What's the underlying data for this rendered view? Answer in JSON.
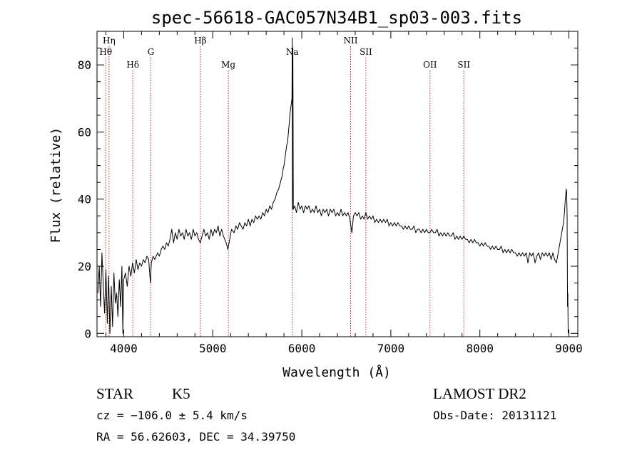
{
  "chart_data": {
    "type": "line",
    "title": "spec-56618-GAC057N34B1_sp03-003.fits",
    "xlabel": "Wavelength (Å)",
    "ylabel": "Flux (relative)",
    "xlim": [
      3700,
      9100
    ],
    "ylim": [
      -1,
      90
    ],
    "x_ticks": [
      4000,
      5000,
      6000,
      7000,
      8000,
      9000
    ],
    "y_ticks": [
      0,
      20,
      40,
      60,
      80
    ],
    "grid": false,
    "series": [
      {
        "points": [
          [
            3710,
            12
          ],
          [
            3725,
            20
          ],
          [
            3740,
            8
          ],
          [
            3755,
            24
          ],
          [
            3770,
            15
          ],
          [
            3785,
            6
          ],
          [
            3800,
            19
          ],
          [
            3815,
            3
          ],
          [
            3830,
            17
          ],
          [
            3845,
            0
          ],
          [
            3860,
            14
          ],
          [
            3875,
            2
          ],
          [
            3890,
            18
          ],
          [
            3905,
            9
          ],
          [
            3920,
            12
          ],
          [
            3935,
            5
          ],
          [
            3950,
            16
          ],
          [
            3965,
            8
          ],
          [
            3980,
            20
          ],
          [
            3990,
            0
          ],
          [
            4000,
            16
          ],
          [
            4020,
            18
          ],
          [
            4040,
            14
          ],
          [
            4060,
            20
          ],
          [
            4080,
            17
          ],
          [
            4100,
            21
          ],
          [
            4120,
            18
          ],
          [
            4140,
            22
          ],
          [
            4160,
            19
          ],
          [
            4180,
            21
          ],
          [
            4200,
            20
          ],
          [
            4220,
            22
          ],
          [
            4240,
            21
          ],
          [
            4260,
            23
          ],
          [
            4280,
            22
          ],
          [
            4300,
            15
          ],
          [
            4310,
            21
          ],
          [
            4330,
            23
          ],
          [
            4350,
            22
          ],
          [
            4380,
            24
          ],
          [
            4400,
            23
          ],
          [
            4420,
            25
          ],
          [
            4440,
            26
          ],
          [
            4460,
            25
          ],
          [
            4480,
            27
          ],
          [
            4500,
            26
          ],
          [
            4520,
            28
          ],
          [
            4540,
            31
          ],
          [
            4560,
            27
          ],
          [
            4580,
            30
          ],
          [
            4600,
            28
          ],
          [
            4620,
            31
          ],
          [
            4640,
            29
          ],
          [
            4660,
            30
          ],
          [
            4680,
            28
          ],
          [
            4700,
            31
          ],
          [
            4720,
            29
          ],
          [
            4740,
            30
          ],
          [
            4760,
            28
          ],
          [
            4780,
            31
          ],
          [
            4800,
            29
          ],
          [
            4820,
            30
          ],
          [
            4840,
            28
          ],
          [
            4860,
            27
          ],
          [
            4880,
            29
          ],
          [
            4900,
            31
          ],
          [
            4920,
            29
          ],
          [
            4940,
            30
          ],
          [
            4960,
            28
          ],
          [
            4980,
            31
          ],
          [
            5000,
            29
          ],
          [
            5020,
            31
          ],
          [
            5040,
            30
          ],
          [
            5060,
            32
          ],
          [
            5080,
            29
          ],
          [
            5100,
            31
          ],
          [
            5120,
            29
          ],
          [
            5150,
            27
          ],
          [
            5170,
            25
          ],
          [
            5190,
            28
          ],
          [
            5210,
            31
          ],
          [
            5240,
            30
          ],
          [
            5260,
            32
          ],
          [
            5280,
            31
          ],
          [
            5300,
            33
          ],
          [
            5320,
            32
          ],
          [
            5340,
            31
          ],
          [
            5360,
            33
          ],
          [
            5380,
            32
          ],
          [
            5400,
            34
          ],
          [
            5420,
            32
          ],
          [
            5440,
            34
          ],
          [
            5460,
            33
          ],
          [
            5480,
            35
          ],
          [
            5500,
            34
          ],
          [
            5520,
            35
          ],
          [
            5540,
            34
          ],
          [
            5560,
            36
          ],
          [
            5580,
            35
          ],
          [
            5600,
            37
          ],
          [
            5620,
            36
          ],
          [
            5640,
            38
          ],
          [
            5660,
            37
          ],
          [
            5680,
            39
          ],
          [
            5700,
            40
          ],
          [
            5720,
            42
          ],
          [
            5740,
            43
          ],
          [
            5760,
            45
          ],
          [
            5780,
            47
          ],
          [
            5790,
            49
          ],
          [
            5800,
            50
          ],
          [
            5810,
            52
          ],
          [
            5820,
            54
          ],
          [
            5830,
            56
          ],
          [
            5840,
            57
          ],
          [
            5850,
            60
          ],
          [
            5860,
            63
          ],
          [
            5870,
            66
          ],
          [
            5880,
            68
          ],
          [
            5890,
            70
          ],
          [
            5893,
            88
          ],
          [
            5896,
            37
          ],
          [
            5900,
            85
          ],
          [
            5905,
            37
          ],
          [
            5920,
            38
          ],
          [
            5940,
            36
          ],
          [
            5960,
            39
          ],
          [
            5980,
            37
          ],
          [
            6000,
            38
          ],
          [
            6020,
            36
          ],
          [
            6040,
            38
          ],
          [
            6060,
            37
          ],
          [
            6080,
            38
          ],
          [
            6100,
            36
          ],
          [
            6120,
            37
          ],
          [
            6140,
            36
          ],
          [
            6160,
            38
          ],
          [
            6180,
            36
          ],
          [
            6200,
            37
          ],
          [
            6220,
            35
          ],
          [
            6240,
            37
          ],
          [
            6260,
            36
          ],
          [
            6280,
            37
          ],
          [
            6300,
            35
          ],
          [
            6320,
            37
          ],
          [
            6340,
            36
          ],
          [
            6360,
            37
          ],
          [
            6380,
            35
          ],
          [
            6400,
            36
          ],
          [
            6420,
            35
          ],
          [
            6440,
            37
          ],
          [
            6460,
            35
          ],
          [
            6480,
            36
          ],
          [
            6500,
            35
          ],
          [
            6520,
            36
          ],
          [
            6540,
            34
          ],
          [
            6563,
            30
          ],
          [
            6580,
            35
          ],
          [
            6600,
            36
          ],
          [
            6620,
            35
          ],
          [
            6640,
            36
          ],
          [
            6660,
            34
          ],
          [
            6680,
            35
          ],
          [
            6700,
            34
          ],
          [
            6720,
            36
          ],
          [
            6740,
            34
          ],
          [
            6760,
            35
          ],
          [
            6780,
            34
          ],
          [
            6800,
            35
          ],
          [
            6820,
            33
          ],
          [
            6840,
            34
          ],
          [
            6860,
            33
          ],
          [
            6880,
            34
          ],
          [
            6900,
            33
          ],
          [
            6920,
            34
          ],
          [
            6940,
            33
          ],
          [
            6960,
            34
          ],
          [
            6980,
            32
          ],
          [
            7000,
            33
          ],
          [
            7020,
            32
          ],
          [
            7040,
            33
          ],
          [
            7060,
            32
          ],
          [
            7080,
            33
          ],
          [
            7100,
            32
          ],
          [
            7120,
            32
          ],
          [
            7140,
            31
          ],
          [
            7160,
            32
          ],
          [
            7180,
            31
          ],
          [
            7200,
            32
          ],
          [
            7220,
            31
          ],
          [
            7240,
            31
          ],
          [
            7260,
            32
          ],
          [
            7280,
            30
          ],
          [
            7300,
            31
          ],
          [
            7320,
            31
          ],
          [
            7340,
            30
          ],
          [
            7360,
            31
          ],
          [
            7380,
            30
          ],
          [
            7400,
            31
          ],
          [
            7420,
            30
          ],
          [
            7440,
            30
          ],
          [
            7460,
            31
          ],
          [
            7480,
            30
          ],
          [
            7500,
            30
          ],
          [
            7520,
            31
          ],
          [
            7540,
            29
          ],
          [
            7560,
            30
          ],
          [
            7580,
            29
          ],
          [
            7600,
            30
          ],
          [
            7620,
            29
          ],
          [
            7640,
            30
          ],
          [
            7660,
            29
          ],
          [
            7680,
            29
          ],
          [
            7700,
            30
          ],
          [
            7720,
            28
          ],
          [
            7740,
            29
          ],
          [
            7760,
            28
          ],
          [
            7780,
            29
          ],
          [
            7800,
            28
          ],
          [
            7820,
            29
          ],
          [
            7840,
            28
          ],
          [
            7860,
            28
          ],
          [
            7880,
            27
          ],
          [
            7900,
            28
          ],
          [
            7920,
            27
          ],
          [
            7940,
            28
          ],
          [
            7960,
            27
          ],
          [
            7980,
            27
          ],
          [
            8000,
            26
          ],
          [
            8020,
            27
          ],
          [
            8040,
            26
          ],
          [
            8060,
            27
          ],
          [
            8080,
            26
          ],
          [
            8100,
            26
          ],
          [
            8120,
            25
          ],
          [
            8140,
            26
          ],
          [
            8160,
            25
          ],
          [
            8180,
            26
          ],
          [
            8200,
            25
          ],
          [
            8220,
            25
          ],
          [
            8240,
            26
          ],
          [
            8260,
            24
          ],
          [
            8280,
            25
          ],
          [
            8300,
            24
          ],
          [
            8320,
            25
          ],
          [
            8340,
            24
          ],
          [
            8360,
            25
          ],
          [
            8380,
            24
          ],
          [
            8400,
            24
          ],
          [
            8420,
            23
          ],
          [
            8440,
            24
          ],
          [
            8460,
            23
          ],
          [
            8480,
            24
          ],
          [
            8500,
            23
          ],
          [
            8520,
            24
          ],
          [
            8540,
            21
          ],
          [
            8560,
            24
          ],
          [
            8580,
            23
          ],
          [
            8600,
            24
          ],
          [
            8620,
            21
          ],
          [
            8640,
            23
          ],
          [
            8660,
            24
          ],
          [
            8680,
            22
          ],
          [
            8700,
            24
          ],
          [
            8720,
            23
          ],
          [
            8740,
            24
          ],
          [
            8760,
            23
          ],
          [
            8780,
            24
          ],
          [
            8800,
            22
          ],
          [
            8820,
            24
          ],
          [
            8840,
            22
          ],
          [
            8860,
            21
          ],
          [
            8880,
            24
          ],
          [
            8900,
            27
          ],
          [
            8920,
            30
          ],
          [
            8940,
            33
          ],
          [
            8950,
            36
          ],
          [
            8960,
            40
          ],
          [
            8970,
            43
          ],
          [
            8975,
            42
          ],
          [
            8980,
            35
          ],
          [
            8985,
            8
          ],
          [
            8988,
            12
          ],
          [
            8992,
            0
          ]
        ]
      }
    ],
    "line_markers": [
      {
        "label": "Hη",
        "x": 3835,
        "row": 1
      },
      {
        "label": "Hθ",
        "x": 3798,
        "row": 2
      },
      {
        "label": "Hδ",
        "x": 4102,
        "row": 3
      },
      {
        "label": "G",
        "x": 4305,
        "row": 2
      },
      {
        "label": "Hβ",
        "x": 4861,
        "row": 1
      },
      {
        "label": "Mg",
        "x": 5175,
        "row": 3
      },
      {
        "label": "Na",
        "x": 5893,
        "row": 2
      },
      {
        "label": "NII",
        "x": 6548,
        "row": 1
      },
      {
        "label": "SII",
        "x": 6720,
        "row": 2
      },
      {
        "label": "OII",
        "x": 7440,
        "row": 3
      },
      {
        "label": "SII",
        "x": 7820,
        "row": 3
      }
    ]
  },
  "footer": {
    "class_label": "STAR",
    "subclass_label": "K5",
    "survey_label": "LAMOST DR2",
    "cz_text": "cz = −106.0 ± 5.4 km/s",
    "obs_date_text": "Obs-Date: 20131121",
    "coords_text": "RA =  56.62603, DEC =  34.39750"
  },
  "colors": {
    "line_marker": "#b22222",
    "spectrum": "#000000"
  }
}
